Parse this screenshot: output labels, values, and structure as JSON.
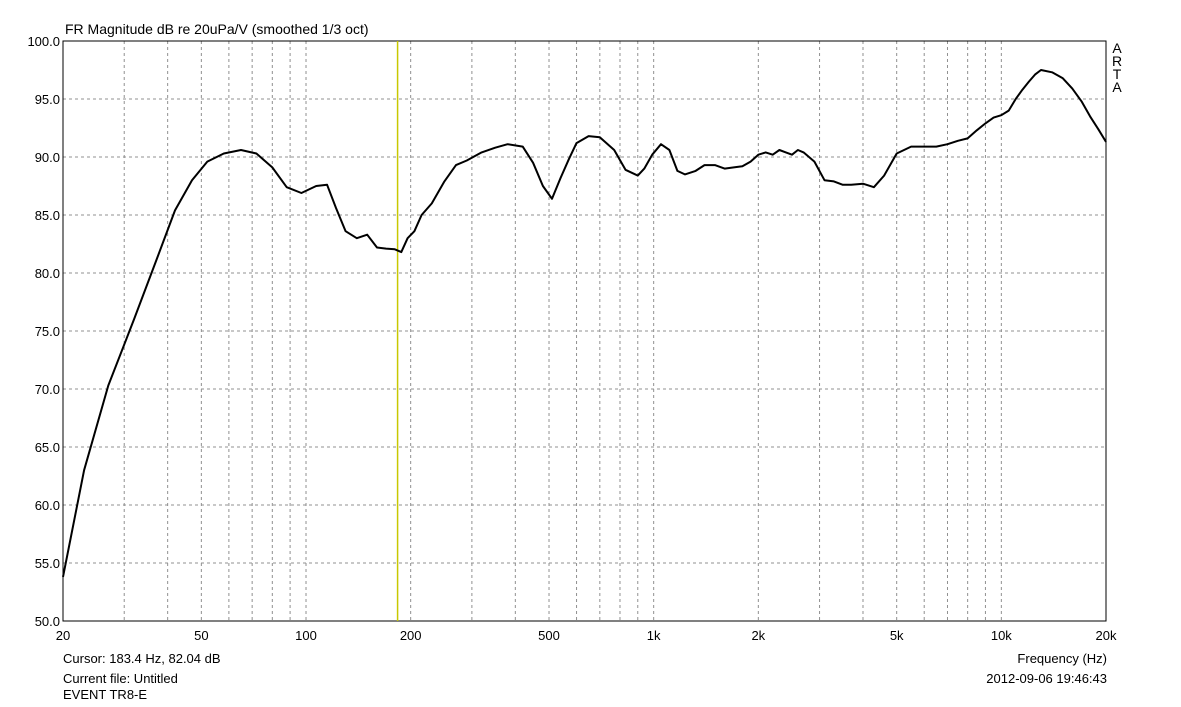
{
  "chart_data": {
    "type": "line",
    "title": "FR Magnitude dB re 20uPa/V (smoothed 1/3 oct)",
    "xlabel": "Frequency (Hz)",
    "ylabel": "",
    "x_scale": "log",
    "xlim": [
      20,
      20000
    ],
    "ylim": [
      50.0,
      100.0
    ],
    "grid": true,
    "x_ticks": [
      {
        "value": 20,
        "label": "20"
      },
      {
        "value": 50,
        "label": "50"
      },
      {
        "value": 100,
        "label": "100"
      },
      {
        "value": 200,
        "label": "200"
      },
      {
        "value": 500,
        "label": "500"
      },
      {
        "value": 1000,
        "label": "1k"
      },
      {
        "value": 2000,
        "label": "2k"
      },
      {
        "value": 5000,
        "label": "5k"
      },
      {
        "value": 10000,
        "label": "10k"
      },
      {
        "value": 20000,
        "label": "20k"
      }
    ],
    "y_ticks": [
      {
        "value": 100,
        "label": "100.0"
      },
      {
        "value": 95,
        "label": "95.0"
      },
      {
        "value": 90,
        "label": "90.0"
      },
      {
        "value": 85,
        "label": "85.0"
      },
      {
        "value": 80,
        "label": "80.0"
      },
      {
        "value": 75,
        "label": "75.0"
      },
      {
        "value": 70,
        "label": "70.0"
      },
      {
        "value": 65,
        "label": "65.0"
      },
      {
        "value": 60,
        "label": "60.0"
      },
      {
        "value": 55,
        "label": "55.0"
      },
      {
        "value": 50,
        "label": "50.0"
      }
    ],
    "cursor_x": 183.4,
    "series": [
      {
        "color": "#000000",
        "x": [
          20,
          23,
          27,
          32,
          37,
          42,
          47,
          52,
          58,
          65,
          72,
          80,
          88,
          97,
          107,
          115,
          122,
          130,
          140,
          150,
          160,
          170,
          180,
          188,
          196,
          205,
          215,
          230,
          250,
          270,
          290,
          320,
          350,
          380,
          420,
          450,
          480,
          510,
          540,
          570,
          600,
          650,
          700,
          770,
          830,
          900,
          940,
          990,
          1050,
          1110,
          1170,
          1230,
          1320,
          1400,
          1500,
          1600,
          1700,
          1800,
          1900,
          2000,
          2100,
          2200,
          2300,
          2400,
          2500,
          2600,
          2700,
          2900,
          3100,
          3300,
          3500,
          3700,
          4000,
          4300,
          4600,
          5000,
          5500,
          6000,
          6500,
          7000,
          7500,
          8000,
          8500,
          9000,
          9500,
          10000,
          10500,
          11000,
          11500,
          12000,
          12500,
          13000,
          14000,
          15000,
          16000,
          17000,
          18000,
          19000,
          20000
        ],
        "y": [
          53.8,
          63.0,
          70.3,
          76.0,
          81.0,
          85.4,
          88.0,
          89.6,
          90.3,
          90.6,
          90.3,
          89.1,
          87.4,
          86.9,
          87.5,
          87.6,
          85.6,
          83.6,
          83.0,
          83.3,
          82.2,
          82.1,
          82.04,
          81.8,
          83.0,
          83.6,
          85.0,
          86.0,
          87.9,
          89.3,
          89.7,
          90.4,
          90.8,
          91.1,
          90.9,
          89.5,
          87.5,
          86.4,
          88.2,
          89.8,
          91.2,
          91.8,
          91.7,
          90.6,
          88.9,
          88.4,
          89.0,
          90.2,
          91.1,
          90.6,
          88.8,
          88.5,
          88.8,
          89.3,
          89.3,
          89.0,
          89.1,
          89.2,
          89.6,
          90.2,
          90.4,
          90.2,
          90.6,
          90.4,
          90.2,
          90.6,
          90.4,
          89.6,
          88.0,
          87.9,
          87.6,
          87.6,
          87.7,
          87.4,
          88.4,
          90.3,
          90.9,
          90.9,
          90.9,
          91.1,
          91.4,
          91.6,
          92.3,
          92.9,
          93.4,
          93.6,
          94.0,
          95.0,
          95.8,
          96.5,
          97.1,
          97.5,
          97.3,
          96.8,
          95.9,
          94.8,
          93.5,
          92.4,
          91.3
        ]
      }
    ]
  },
  "footer": {
    "cursor": "Cursor: 183.4 Hz, 82.04 dB",
    "current_file": "Current file: Untitled",
    "device": "EVENT TR8-E",
    "x_axis_label": "Frequency (Hz)",
    "timestamp": "2012-09-06  19:46:43"
  },
  "brand": [
    "A",
    "R",
    "T",
    "A"
  ],
  "colors": {
    "background": "#ffffff",
    "grid": "#909090",
    "curve": "#000000",
    "cursor_line": "#c8c800"
  }
}
